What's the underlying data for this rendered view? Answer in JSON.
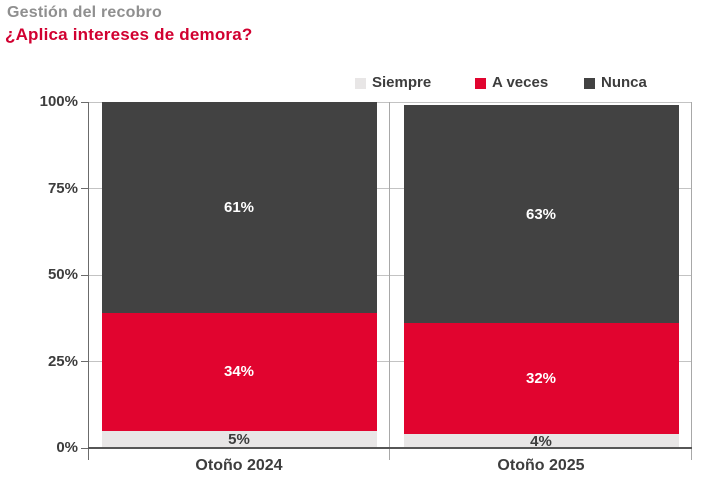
{
  "header": {
    "title": "Gestión del recobro",
    "subtitle": "¿Aplica intereses de demora?",
    "title_color": "#8f8f8f",
    "subtitle_color": "#d10030"
  },
  "chart_data": {
    "type": "bar",
    "stacked": true,
    "orientation": "vertical",
    "categories": [
      "Otoño 2024",
      "Otoño 2025"
    ],
    "series": [
      {
        "name": "Siempre",
        "values": [
          5,
          4
        ],
        "color": "#e8e6e6",
        "label_color": "#3d3d3d"
      },
      {
        "name": "A veces",
        "values": [
          34,
          32
        ],
        "color": "#e1042f",
        "label_color": "#ffffff"
      },
      {
        "name": "Nunca",
        "values": [
          61,
          63
        ],
        "color": "#424242",
        "label_color": "#ffffff"
      }
    ],
    "value_suffix": "%",
    "ylim": [
      0,
      100
    ],
    "yticks": [
      {
        "value": 0,
        "label": "0%"
      },
      {
        "value": 25,
        "label": "25%"
      },
      {
        "value": 50,
        "label": "50%"
      },
      {
        "value": 75,
        "label": "75%"
      },
      {
        "value": 100,
        "label": "100%"
      }
    ],
    "grid": "horizontal",
    "legend_position": "top"
  }
}
